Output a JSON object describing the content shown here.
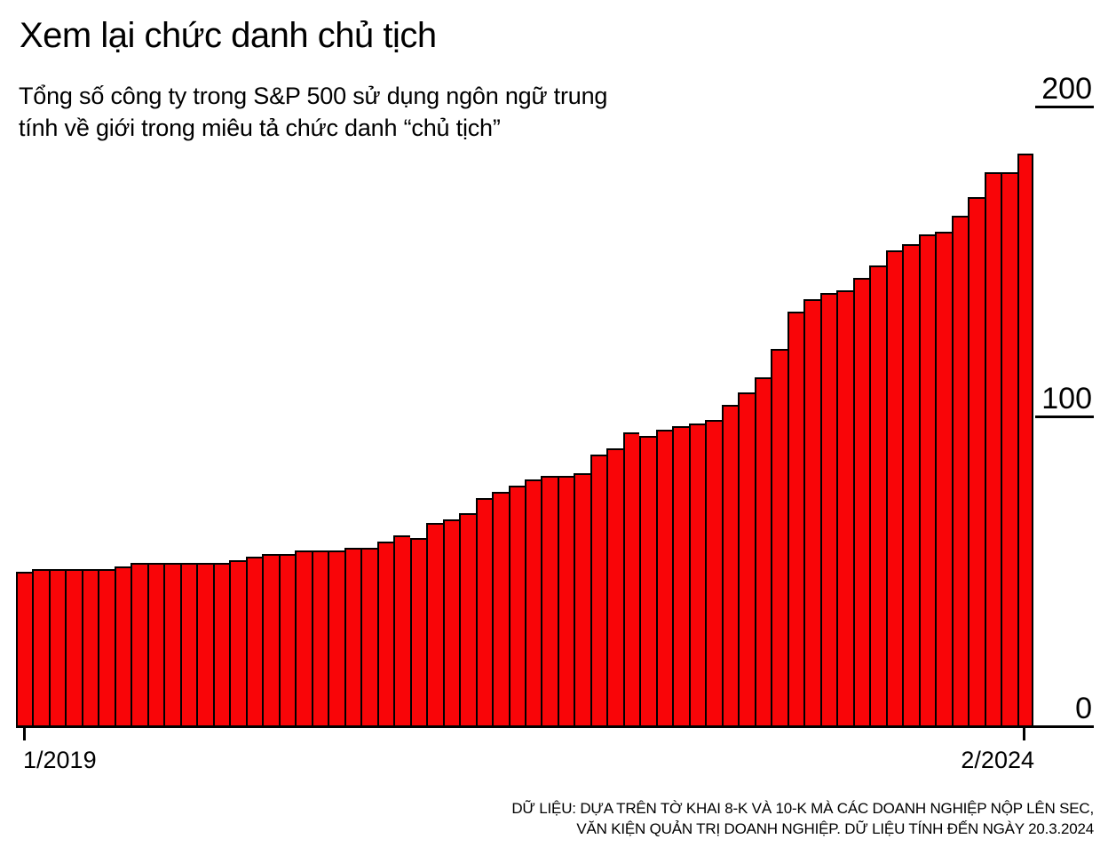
{
  "header": {
    "title": "Xem lại chức danh chủ tịch",
    "subtitle_line1": "Tổng số công ty trong S&P 500 sử dụng ngôn ngữ trung",
    "subtitle_line2": "tính về giới trong miêu tả chức danh “chủ tịch”"
  },
  "chart_data": {
    "type": "bar",
    "title": "Xem lại chức danh chủ tịch",
    "subtitle": "Tổng số công ty trong S&P 500 sử dụng ngôn ngữ trung tính về giới trong miêu tả chức danh “chủ tịch”",
    "x": [
      "1/2019",
      "2/2019",
      "3/2019",
      "4/2019",
      "5/2019",
      "6/2019",
      "7/2019",
      "8/2019",
      "9/2019",
      "10/2019",
      "11/2019",
      "12/2019",
      "1/2020",
      "2/2020",
      "3/2020",
      "4/2020",
      "5/2020",
      "6/2020",
      "7/2020",
      "8/2020",
      "9/2020",
      "10/2020",
      "11/2020",
      "12/2020",
      "1/2021",
      "2/2021",
      "3/2021",
      "4/2021",
      "5/2021",
      "6/2021",
      "7/2021",
      "8/2021",
      "9/2021",
      "10/2021",
      "11/2021",
      "12/2021",
      "1/2022",
      "2/2022",
      "3/2022",
      "4/2022",
      "5/2022",
      "6/2022",
      "7/2022",
      "8/2022",
      "9/2022",
      "10/2022",
      "11/2022",
      "12/2022",
      "1/2023",
      "2/2023",
      "3/2023",
      "4/2023",
      "5/2023",
      "6/2023",
      "7/2023",
      "8/2023",
      "9/2023",
      "10/2023",
      "11/2023",
      "12/2023",
      "1/2024",
      "2/2024"
    ],
    "values": [
      50,
      51,
      51,
      51,
      51,
      51,
      52,
      53,
      53,
      53,
      53,
      53,
      53,
      54,
      55,
      56,
      56,
      57,
      57,
      57,
      58,
      58,
      60,
      62,
      61,
      66,
      67,
      69,
      74,
      76,
      78,
      80,
      81,
      81,
      82,
      88,
      90,
      95,
      94,
      96,
      97,
      98,
      99,
      104,
      108,
      113,
      122,
      134,
      138,
      140,
      141,
      145,
      149,
      154,
      156,
      159,
      160,
      165,
      171,
      179,
      179,
      185
    ],
    "xlabel": "",
    "ylabel": "",
    "ylim": [
      0,
      200
    ],
    "y_ticks": [
      0,
      100,
      200
    ],
    "y_tick_labels": [
      "200",
      "100",
      "0"
    ],
    "x_tick_labels": [
      "1/2019",
      "2/2024"
    ],
    "grid": "off",
    "legend": "none",
    "bar_color": "#F90508",
    "bar_outline_color": "#000000",
    "axis_color": "#000000"
  },
  "source_note": {
    "line1": "DỮ LIỆU: DỰA TRÊN TỜ KHAI 8-K VÀ 10-K MÀ CÁC DOANH NGHIỆP NỘP LÊN SEC,",
    "line2": "VĂN KIỆN QUẢN TRỊ DOANH NGHIỆP. DỮ LIỆU TÍNH ĐẾN NGÀY 20.3.2024"
  }
}
